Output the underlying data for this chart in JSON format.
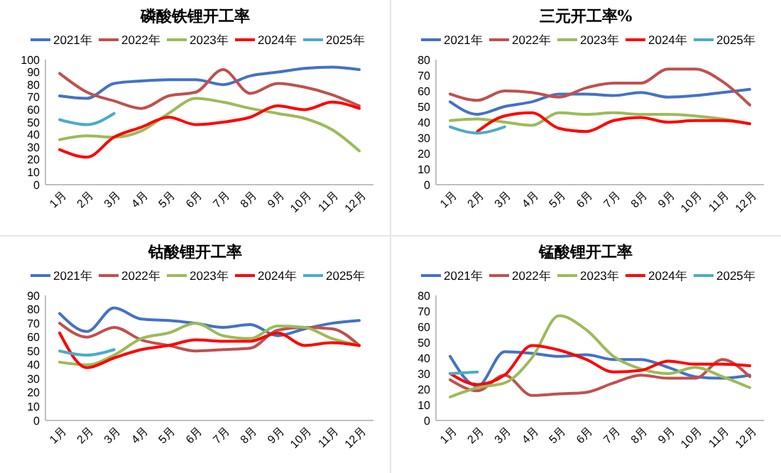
{
  "chart_data": [
    {
      "type": "line",
      "title": "磷酸铁锂开工率",
      "categories": [
        "1月",
        "2月",
        "3月",
        "4月",
        "5月",
        "6月",
        "7月",
        "8月",
        "9月",
        "10月",
        "11月",
        "12月"
      ],
      "ylim": [
        0,
        100
      ],
      "yticks": [
        0,
        10,
        20,
        30,
        40,
        50,
        60,
        70,
        80,
        90,
        100
      ],
      "legend": "top",
      "series": [
        {
          "name": "2021年",
          "color": "#4472c4",
          "values": [
            71,
            69,
            81,
            83,
            84,
            84,
            80,
            87,
            90,
            93,
            94,
            92
          ]
        },
        {
          "name": "2022年",
          "color": "#c0504d",
          "values": [
            89,
            74,
            67,
            61,
            71,
            74,
            92,
            73,
            81,
            78,
            72,
            63
          ]
        },
        {
          "name": "2023年",
          "color": "#9bbb59",
          "values": [
            36,
            39,
            38,
            43,
            57,
            69,
            66,
            61,
            57,
            53,
            44,
            27
          ]
        },
        {
          "name": "2024年",
          "color": "#ff0000",
          "values": [
            28,
            22,
            38,
            46,
            54,
            48,
            50,
            54,
            63,
            60,
            66,
            61
          ]
        },
        {
          "name": "2025年",
          "color": "#4bacc6",
          "values": [
            52,
            48,
            57,
            null,
            null,
            null,
            null,
            null,
            null,
            null,
            null,
            null
          ]
        }
      ]
    },
    {
      "type": "line",
      "title": "三元开工率%",
      "categories": [
        "1月",
        "2月",
        "3月",
        "4月",
        "5月",
        "6月",
        "7月",
        "8月",
        "9月",
        "10月",
        "11月",
        "12月"
      ],
      "ylim": [
        0,
        80
      ],
      "yticks": [
        0,
        10,
        20,
        30,
        40,
        50,
        60,
        70,
        80
      ],
      "legend": "top",
      "series": [
        {
          "name": "2021年",
          "color": "#4472c4",
          "values": [
            53,
            45,
            50,
            53,
            58,
            58,
            57,
            59,
            56,
            57,
            59,
            61
          ]
        },
        {
          "name": "2022年",
          "color": "#c0504d",
          "values": [
            58,
            54,
            60,
            59,
            56,
            62,
            65,
            65,
            74,
            74,
            66,
            51
          ]
        },
        {
          "name": "2023年",
          "color": "#9bbb59",
          "values": [
            41,
            42,
            40,
            38,
            46,
            45,
            46,
            45,
            45,
            44,
            42,
            39
          ]
        },
        {
          "name": "2024年",
          "color": "#ff0000",
          "values": [
            null,
            34,
            44,
            46,
            36,
            34,
            41,
            43,
            40,
            41,
            41,
            39
          ]
        },
        {
          "name": "2025年",
          "color": "#4bacc6",
          "values": [
            37,
            33,
            37,
            null,
            null,
            null,
            null,
            null,
            null,
            null,
            null,
            null
          ]
        }
      ]
    },
    {
      "type": "line",
      "title": "钴酸锂开工率",
      "categories": [
        "1月",
        "2月",
        "3月",
        "4月",
        "5月",
        "6月",
        "7月",
        "8月",
        "9月",
        "10月",
        "11月",
        "12月"
      ],
      "ylim": [
        0,
        90
      ],
      "yticks": [
        0,
        10,
        20,
        30,
        40,
        50,
        60,
        70,
        80,
        90
      ],
      "legend": "top",
      "series": [
        {
          "name": "2021年",
          "color": "#4472c4",
          "values": [
            77,
            64,
            81,
            73,
            72,
            70,
            67,
            69,
            61,
            66,
            70,
            72
          ]
        },
        {
          "name": "2022年",
          "color": "#c0504d",
          "values": [
            70,
            60,
            67,
            58,
            54,
            50,
            51,
            52,
            65,
            67,
            66,
            54
          ]
        },
        {
          "name": "2023年",
          "color": "#9bbb59",
          "values": [
            42,
            40,
            47,
            59,
            63,
            70,
            61,
            59,
            68,
            67,
            59,
            54
          ]
        },
        {
          "name": "2024年",
          "color": "#ff0000",
          "values": [
            63,
            38,
            45,
            51,
            54,
            58,
            57,
            57,
            63,
            54,
            56,
            54
          ]
        },
        {
          "name": "2025年",
          "color": "#4bacc6",
          "values": [
            50,
            47,
            51,
            null,
            null,
            null,
            null,
            null,
            null,
            null,
            null,
            null
          ]
        }
      ]
    },
    {
      "type": "line",
      "title": "锰酸锂开工率",
      "categories": [
        "1月",
        "2月",
        "3月",
        "4月",
        "5月",
        "6月",
        "7月",
        "8月",
        "9月",
        "10月",
        "11月",
        "12月"
      ],
      "ylim": [
        0,
        80
      ],
      "yticks": [
        0,
        10,
        20,
        30,
        40,
        50,
        60,
        70,
        80
      ],
      "legend": "top",
      "series": [
        {
          "name": "2021年",
          "color": "#4472c4",
          "values": [
            41,
            22,
            44,
            43,
            41,
            42,
            39,
            39,
            34,
            28,
            27,
            29
          ]
        },
        {
          "name": "2022年",
          "color": "#c0504d",
          "values": [
            26,
            19,
            29,
            16,
            17,
            18,
            24,
            29,
            27,
            27,
            39,
            28
          ]
        },
        {
          "name": "2023年",
          "color": "#9bbb59",
          "values": [
            15,
            21,
            24,
            40,
            67,
            58,
            41,
            33,
            30,
            34,
            28,
            21
          ]
        },
        {
          "name": "2024年",
          "color": "#ff0000",
          "values": [
            30,
            23,
            29,
            48,
            45,
            39,
            31,
            32,
            38,
            36,
            36,
            35
          ]
        },
        {
          "name": "2025年",
          "color": "#4bacc6",
          "values": [
            30,
            31,
            null,
            null,
            null,
            null,
            null,
            null,
            null,
            null,
            null,
            null
          ]
        }
      ]
    }
  ]
}
